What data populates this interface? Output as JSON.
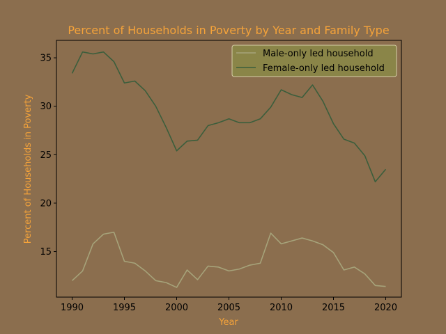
{
  "chart_data": {
    "type": "line",
    "title": "Percent of Households in Poverty by Year and Family Type",
    "xlabel": "Year",
    "ylabel": "Percent of Households in Poverty",
    "xlim": [
      1988.5,
      2021.5
    ],
    "ylim": [
      10.3,
      36.8
    ],
    "x_ticks": [
      1990,
      1995,
      2000,
      2005,
      2010,
      2015,
      2020
    ],
    "y_ticks": [
      15,
      20,
      25,
      30,
      35
    ],
    "legend_position": "top-right",
    "x": [
      1990,
      1991,
      1992,
      1993,
      1994,
      1995,
      1996,
      1997,
      1998,
      1999,
      2000,
      2001,
      2002,
      2003,
      2004,
      2005,
      2006,
      2007,
      2008,
      2009,
      2010,
      2011,
      2012,
      2013,
      2014,
      2015,
      2016,
      2017,
      2018,
      2019,
      2020
    ],
    "series": [
      {
        "name": "Male-only led household",
        "color": "#a6a37a",
        "values": [
          12.0,
          13.0,
          15.8,
          16.8,
          17.0,
          14.0,
          13.8,
          13.0,
          12.0,
          11.8,
          11.3,
          13.1,
          12.1,
          13.5,
          13.4,
          13.0,
          13.2,
          13.6,
          13.8,
          16.9,
          15.8,
          16.1,
          16.4,
          16.1,
          15.7,
          14.9,
          13.1,
          13.4,
          12.7,
          11.5,
          11.4
        ]
      },
      {
        "name": "Female-only led household",
        "color": "#3b5e3c",
        "values": [
          33.4,
          35.6,
          35.4,
          35.6,
          34.6,
          32.4,
          32.6,
          31.6,
          30.0,
          27.8,
          25.4,
          26.4,
          26.5,
          28.0,
          28.3,
          28.7,
          28.3,
          28.3,
          28.7,
          29.9,
          31.7,
          31.2,
          30.9,
          32.2,
          30.5,
          28.2,
          26.6,
          26.2,
          24.9,
          22.2,
          23.5
        ]
      }
    ],
    "colors": {
      "background": "#8b6e4e",
      "accent": "#f5a33a",
      "legend_bg": "#8a8548"
    }
  }
}
